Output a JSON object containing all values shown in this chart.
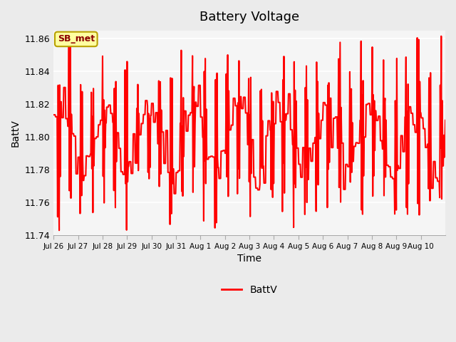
{
  "title": "Battery Voltage",
  "xlabel": "Time",
  "ylabel": "BattV",
  "ylim": [
    11.74,
    11.865
  ],
  "yticks": [
    11.74,
    11.76,
    11.78,
    11.8,
    11.82,
    11.84,
    11.86
  ],
  "line_color": "#ff0000",
  "line_width": 1.5,
  "bg_color": "#ebebeb",
  "plot_bg_color": "#f5f5f5",
  "legend_label": "BattV",
  "annotation_text": "SB_met",
  "annotation_bg": "#ffffa0",
  "annotation_border": "#b8a000",
  "annotation_text_color": "#8b0000",
  "x_tick_labels": [
    "Jul 26",
    "Jul 27",
    "Jul 28",
    "Jul 29",
    "Jul 30",
    "Jul 31",
    "Aug 1",
    "Aug 2",
    "Aug 3",
    "Aug 4",
    "Aug 5",
    "Aug 6",
    "Aug 7",
    "Aug 8",
    "Aug 9",
    "Aug 10"
  ],
  "seed": 42
}
